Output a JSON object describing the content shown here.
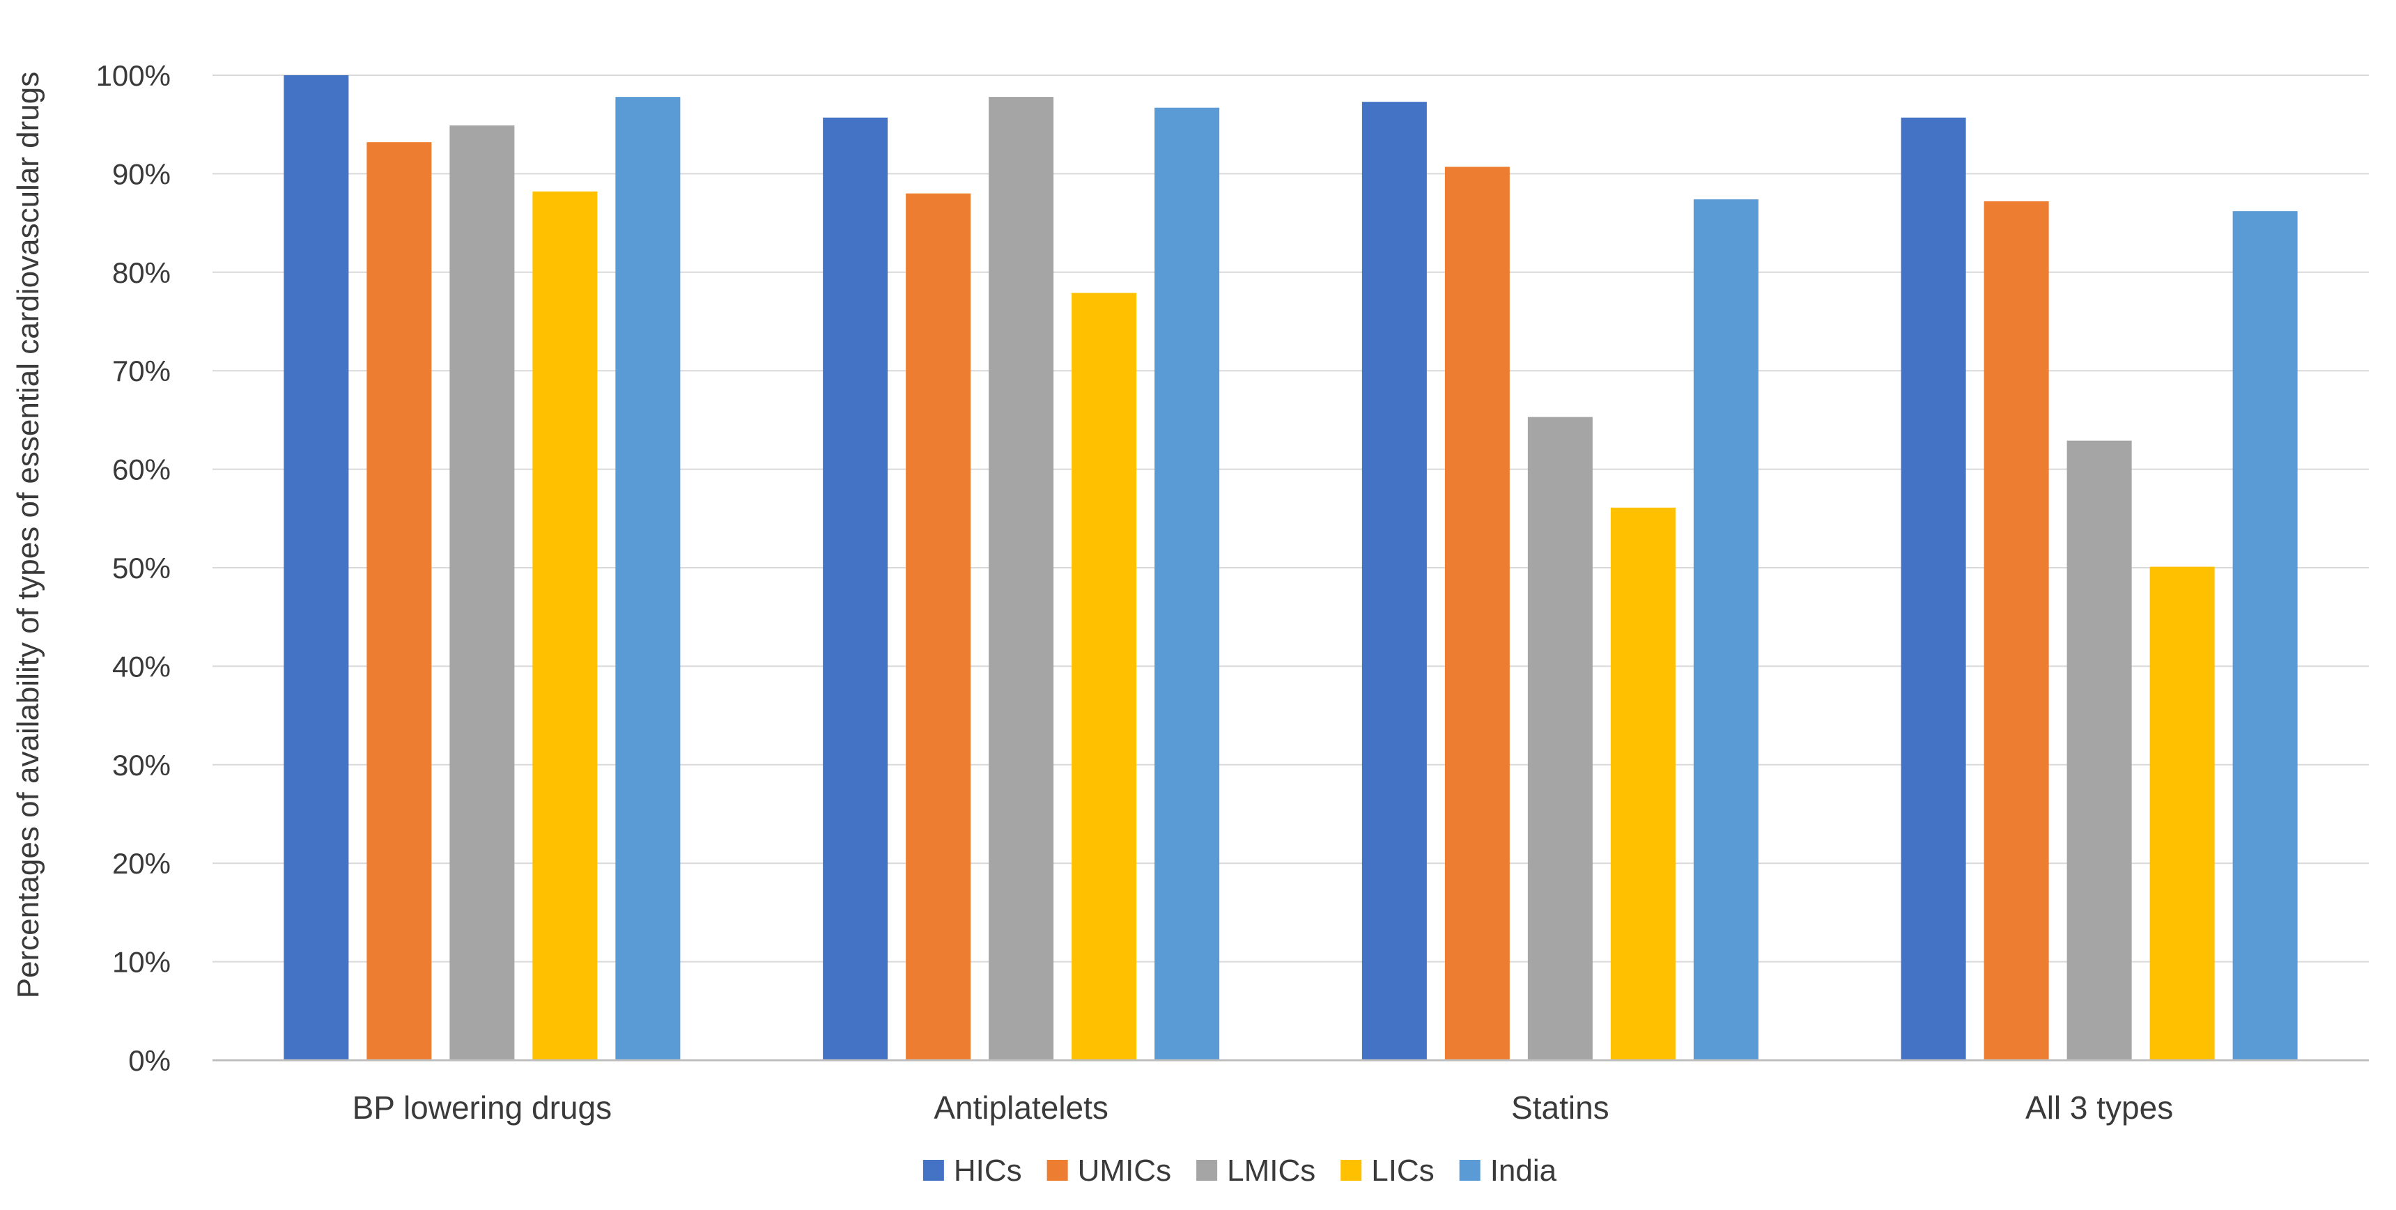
{
  "chart_data": {
    "type": "bar",
    "title": "",
    "xlabel": "",
    "ylabel": "Percentages of availability of types of essential cardiovascular drugs",
    "categories": [
      "BP lowering drugs",
      "Antiplatelets",
      "Statins",
      "All 3 types"
    ],
    "series": [
      {
        "name": "HICs",
        "color": "#4472C4",
        "values": [
          100,
          95.7,
          97.3,
          95.7
        ]
      },
      {
        "name": "UMICs",
        "color": "#ED7D31",
        "values": [
          93.2,
          88.0,
          90.7,
          87.2
        ]
      },
      {
        "name": "LMICs",
        "color": "#A5A5A5",
        "values": [
          94.9,
          97.8,
          65.3,
          62.9
        ]
      },
      {
        "name": "LICs",
        "color": "#FFC000",
        "values": [
          88.2,
          77.9,
          56.1,
          50.1
        ]
      },
      {
        "name": "India",
        "color": "#5B9BD5",
        "values": [
          97.8,
          96.7,
          87.4,
          86.2
        ]
      }
    ],
    "ylim": [
      0,
      100
    ],
    "yticks": [
      "0%",
      "10%",
      "20%",
      "30%",
      "40%",
      "50%",
      "60%",
      "70%",
      "80%",
      "90%",
      "100%"
    ],
    "grid": true,
    "legend_position": "bottom-center"
  }
}
